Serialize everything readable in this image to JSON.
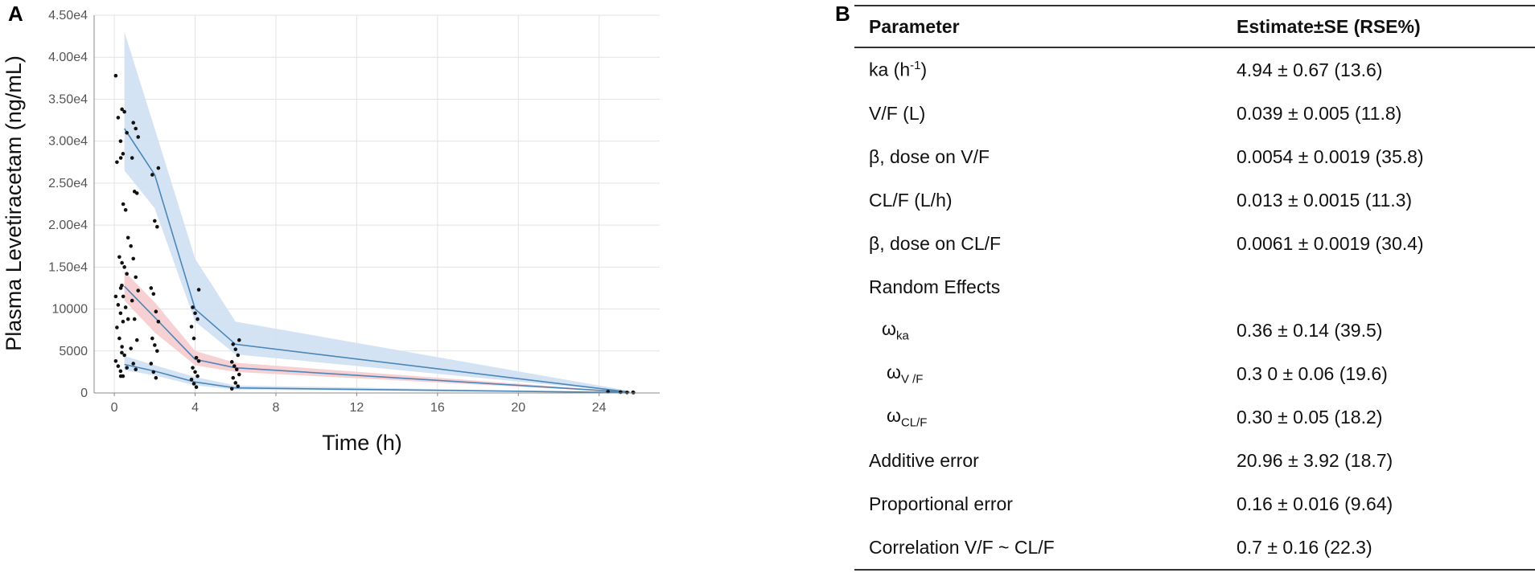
{
  "panel_a_label": "A",
  "panel_b_label": "B",
  "chart_data": {
    "type": "line",
    "title": "",
    "xlabel": "Time (h)",
    "ylabel": "Plasma Levetiracetam (ng/mL)",
    "xlim": [
      -1,
      27
    ],
    "ylim": [
      0,
      45000
    ],
    "x_ticks": [
      0,
      4,
      8,
      12,
      16,
      20,
      24
    ],
    "x_tick_labels": [
      "0",
      "4",
      "8",
      "12",
      "16",
      "20",
      "24"
    ],
    "y_ticks": [
      0,
      5000,
      10000,
      15000,
      20000,
      25000,
      30000,
      35000,
      40000,
      45000
    ],
    "y_tick_labels": [
      "0",
      "5000",
      "10000",
      "1.50e4",
      "2.00e4",
      "2.50e4",
      "3.00e4",
      "3.50e4",
      "4.00e4",
      "4.50e4"
    ],
    "grid": true,
    "colors": {
      "line": "#4a87b8",
      "upper_band": "#cfe0f3",
      "median_band": "#f6c8cb",
      "lower_band": "#cfe0f3",
      "points": "#111111"
    },
    "series": [
      {
        "name": "upper percentile",
        "x": [
          0.5,
          2,
          4,
          6,
          25.5
        ],
        "y": [
          31500,
          26000,
          10000,
          5800,
          100
        ]
      },
      {
        "name": "median",
        "x": [
          0.5,
          2,
          4,
          6,
          25.5
        ],
        "y": [
          12700,
          9000,
          4000,
          3000,
          80
        ]
      },
      {
        "name": "lower percentile",
        "x": [
          0.5,
          2,
          4,
          6,
          25.5
        ],
        "y": [
          3400,
          2600,
          1300,
          600,
          40
        ]
      }
    ],
    "bands": [
      {
        "name": "upper CI",
        "x": [
          0.5,
          2,
          4,
          6,
          25.5
        ],
        "lower": [
          26500,
          22000,
          8500,
          4600,
          80
        ],
        "upper": [
          43000,
          31500,
          16000,
          8500,
          250
        ]
      },
      {
        "name": "median CI",
        "x": [
          0.5,
          2,
          4,
          6,
          25.5
        ],
        "lower": [
          11000,
          7200,
          3300,
          2500,
          60
        ],
        "upper": [
          14500,
          10800,
          5000,
          3600,
          120
        ]
      },
      {
        "name": "lower CI",
        "x": [
          0.5,
          2,
          4,
          6,
          25.5
        ],
        "lower": [
          2700,
          2100,
          900,
          400,
          30
        ],
        "upper": [
          4400,
          3300,
          1900,
          900,
          60
        ]
      }
    ],
    "observations": {
      "x": [
        0.25,
        0.25,
        0.25,
        0.25,
        0.25,
        0.25,
        0.25,
        0.25,
        0.25,
        0.25,
        0.25,
        0.25,
        0.25,
        0.25,
        0.25,
        0.25,
        0.25,
        0.25,
        0.5,
        0.5,
        0.5,
        0.5,
        0.5,
        0.5,
        0.5,
        0.5,
        0.5,
        0.5,
        0.5,
        0.5,
        0.5,
        0.5,
        0.5,
        0.5,
        0.5,
        0.5,
        1,
        1,
        1,
        1,
        1,
        1,
        1,
        1,
        1,
        1,
        1,
        1,
        1,
        1,
        1,
        1,
        2,
        2,
        2,
        2,
        2,
        2,
        2,
        2,
        2,
        2,
        2,
        2,
        2,
        2,
        4,
        4,
        4,
        4,
        4,
        4,
        4,
        4,
        4,
        4,
        4,
        4,
        4,
        4,
        6,
        6,
        6,
        6,
        6,
        6,
        6,
        6,
        6,
        6,
        6,
        6,
        24.5,
        25,
        25.5,
        25.5,
        25.7
      ],
      "y": [
        37800,
        32800,
        30000,
        28500,
        27500,
        16200,
        12800,
        11500,
        10500,
        9500,
        8500,
        7800,
        6500,
        4800,
        3800,
        3200,
        2600,
        2000,
        33800,
        33500,
        31000,
        28000,
        22500,
        21800,
        18500,
        15500,
        15000,
        14200,
        12500,
        11500,
        10200,
        8800,
        5500,
        4500,
        3000,
        2000,
        32200,
        31500,
        30500,
        28000,
        24000,
        23800,
        17500,
        16000,
        13800,
        12200,
        11000,
        8800,
        6300,
        5300,
        3500,
        2800,
        26800,
        26000,
        20500,
        19800,
        12500,
        11800,
        9700,
        8500,
        6500,
        5700,
        5000,
        3500,
        2500,
        1800,
        12300,
        10200,
        9500,
        8800,
        7900,
        6500,
        4200,
        3800,
        3000,
        2500,
        2000,
        1600,
        1100,
        700,
        6300,
        5800,
        5200,
        4500,
        3700,
        3200,
        2800,
        2200,
        1800,
        1200,
        800,
        500,
        150,
        100,
        80,
        60,
        50
      ]
    }
  },
  "table": {
    "header": {
      "parameter": "Parameter",
      "estimate": "Estimate±SE (RSE%)"
    },
    "rows": [
      {
        "p_main": "ka (h",
        "p_sup": "-1",
        "p_tail": ")",
        "estimate": "4.94 ± 0.67 (13.6)"
      },
      {
        "p_main": "V/F (L)",
        "estimate": "0.039 ± 0.005 (11.8)"
      },
      {
        "p_main": "β, dose on V/F",
        "estimate": "0.0054 ± 0.0019 (35.8)"
      },
      {
        "p_main": "CL/F (L/h)",
        "estimate": "0.013 ± 0.0015 (11.3)"
      },
      {
        "p_main": "β, dose on CL/F",
        "estimate": "0.0061 ± 0.0019 (30.4)"
      },
      {
        "p_main": "Random Effects",
        "estimate": ""
      },
      {
        "p_main": "ω",
        "p_sub": "ka",
        "estimate": "0.36 ± 0.14 (39.5)"
      },
      {
        "p_main": "ω",
        "p_sub": "V /F",
        "estimate": "0.3 0 ± 0.06 (19.6)"
      },
      {
        "p_main": "ω",
        "p_sub": "CL/F",
        "estimate": "0.30 ± 0.05 (18.2)"
      },
      {
        "p_main": "Additive error",
        "estimate": "20.96 ± 3.92 (18.7)"
      },
      {
        "p_main": "Proportional error",
        "estimate": "0.16 ± 0.016 (9.64)"
      },
      {
        "p_main": "Correlation V/F ~ CL/F",
        "estimate": "0.7 ± 0.16 (22.3)"
      }
    ]
  }
}
